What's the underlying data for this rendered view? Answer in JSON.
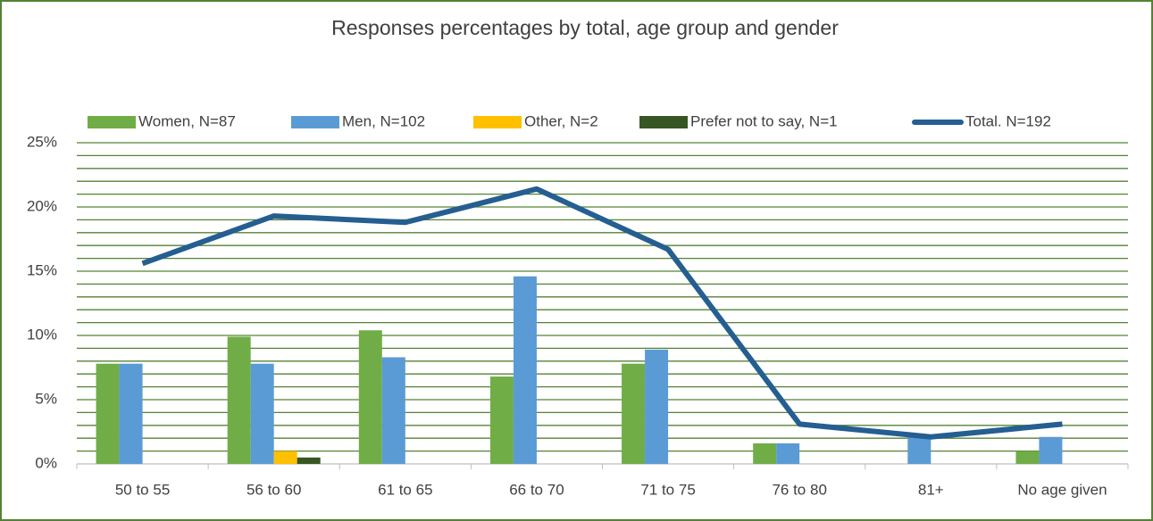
{
  "chart_data": {
    "type": "bar",
    "title": "Responses percentages by total, age group and gender",
    "categories": [
      "50 to 55",
      "56 to 60",
      "61 to 65",
      "66 to 70",
      "71 to 75",
      "76 to 80",
      "81+",
      "No age given"
    ],
    "series": [
      {
        "name": "Women, N=87",
        "color": "#70ad47",
        "values": [
          7.8,
          9.9,
          10.4,
          6.8,
          7.8,
          1.6,
          0,
          1.0
        ]
      },
      {
        "name": "Men, N=102",
        "color": "#5b9bd5",
        "values": [
          7.8,
          7.8,
          8.3,
          14.6,
          8.9,
          1.6,
          2.1,
          2.1
        ]
      },
      {
        "name": "Other, N=2",
        "color": "#ffc000",
        "values": [
          0,
          1.0,
          0,
          0,
          0,
          0,
          0,
          0
        ]
      },
      {
        "name": "Prefer not to say, N=1",
        "color": "#375623",
        "values": [
          0,
          0.5,
          0,
          0,
          0,
          0,
          0,
          0
        ]
      },
      {
        "name": "Total. N=192",
        "color": "#255e91",
        "type": "line",
        "values": [
          15.6,
          19.3,
          18.8,
          21.4,
          16.7,
          3.1,
          2.1,
          3.1
        ]
      }
    ],
    "ylim": [
      0,
      25
    ],
    "yticks": [
      {
        "value": 0,
        "label": "0%"
      },
      {
        "value": 5,
        "label": "5%"
      },
      {
        "value": 10,
        "label": "10%"
      },
      {
        "value": 15,
        "label": "15%"
      },
      {
        "value": 20,
        "label": "20%"
      },
      {
        "value": 25,
        "label": "25%"
      }
    ],
    "minor_yticks": [
      1,
      2,
      3,
      4,
      6,
      7,
      8,
      9,
      11,
      12,
      13,
      14,
      16,
      17,
      18,
      19,
      21,
      22,
      23,
      24
    ],
    "grid": true,
    "grid_color": "#548235",
    "legend": "top"
  }
}
